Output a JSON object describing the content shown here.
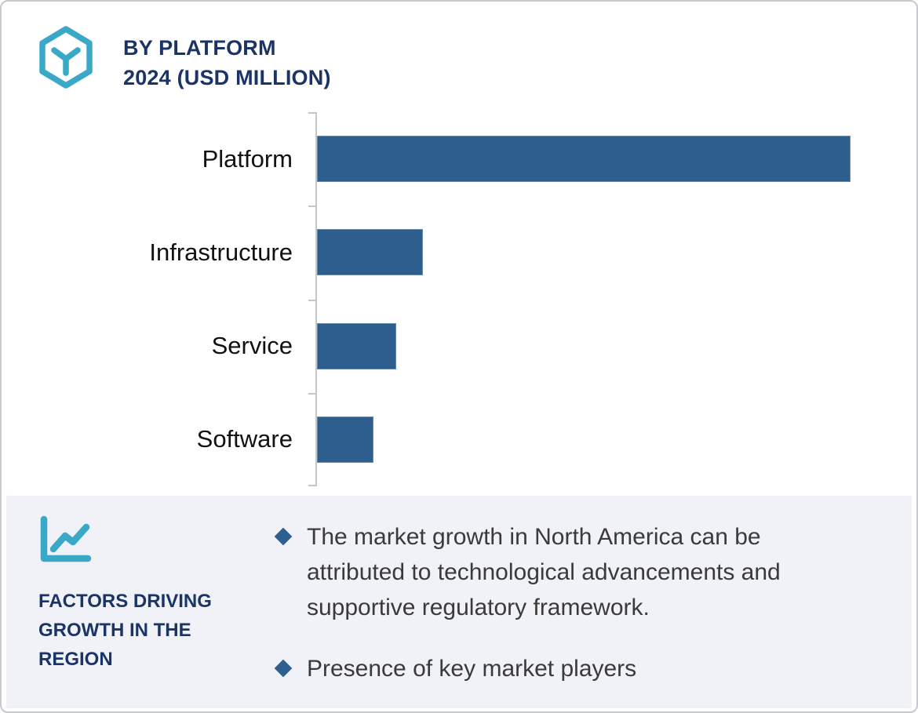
{
  "header": {
    "title_line1": "BY PLATFORM",
    "title_line2": "2024 (USD MILLION)",
    "icon": "hexagon-cube-icon"
  },
  "chart_data": {
    "type": "bar",
    "orientation": "horizontal",
    "title": "BY PLATFORM 2024 (USD MILLION)",
    "unit": "USD Million",
    "categories": [
      "Platform",
      "Infrastructure",
      "Service",
      "Software"
    ],
    "values_pct_of_max": [
      100,
      19.9,
      14.9,
      10.6
    ],
    "value_axis_labels_visible": false,
    "grid": false,
    "legend": false,
    "bar_color": "#2d5e8e",
    "axis_color": "#c6c6c6",
    "label_color": "#111111"
  },
  "factors": {
    "icon": "line-chart-icon",
    "heading": "FACTORS DRIVING\nGROWTH IN THE\nREGION",
    "bullets": [
      {
        "text": "The market growth in North America can be\nattributed to technological advancements and\nsupportive regulatory framework."
      },
      {
        "text": "Presence of key market players"
      }
    ]
  },
  "colors": {
    "accent_teal": "#3aa8c7",
    "navy_heading": "#1b3467",
    "bar_blue": "#2d5e8e",
    "bullet_diamond": "#2e5f8f",
    "band_background": "#f0f2f7",
    "frame_border": "#c7c9cc",
    "bullet_text": "#3a3a3a"
  }
}
